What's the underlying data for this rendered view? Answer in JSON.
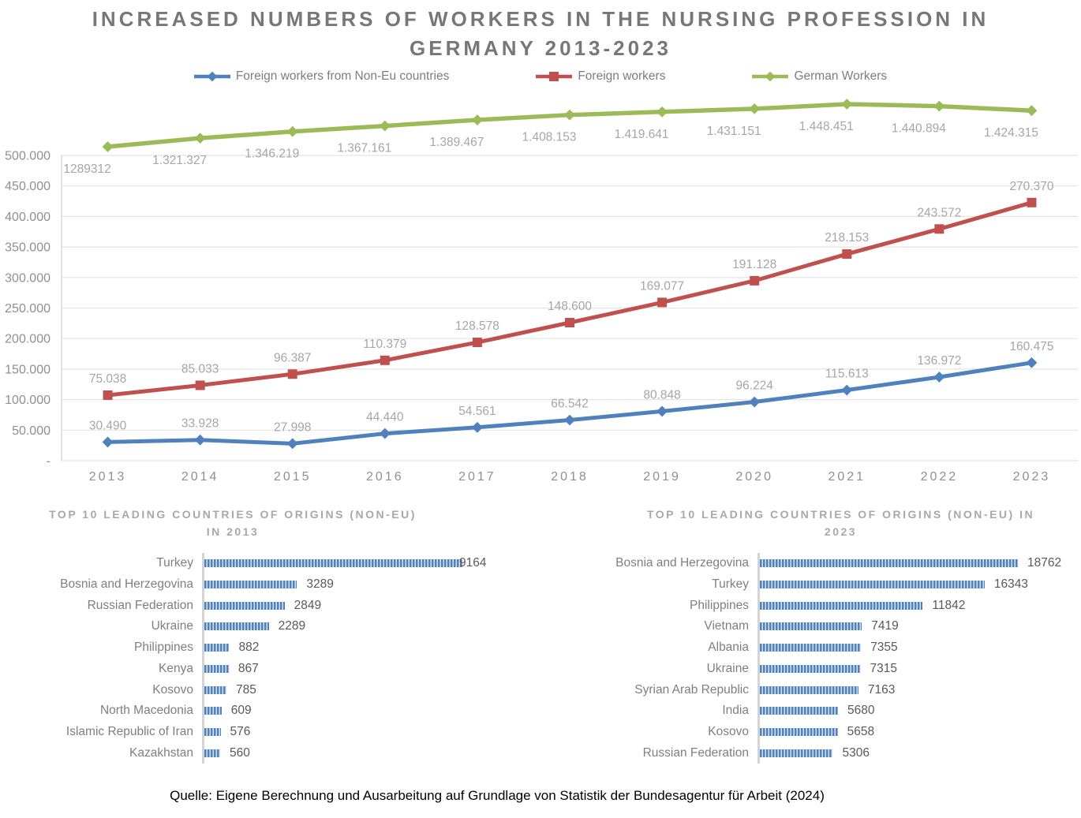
{
  "source_note": "Quelle: Eigene Berechnung und Ausarbeitung auf Grundlage von Statistik der Bundesagentur für Arbeit (2024)",
  "colors": {
    "blue": "#4F81BD",
    "red": "#C0504D",
    "green": "#9BBB59",
    "grid": "#e4e4e4",
    "axis_line": "#d9d9d9",
    "axis_text": "#8f8f8f",
    "data_label": "#a6a6a6",
    "bar_axis": "#d4d4d4",
    "bar_value_text": "#595959",
    "bar_category_text": "#7f7f7f"
  },
  "chart_data": [
    {
      "type": "line",
      "title": "INCREASED NUMBERS OF WORKERS IN THE NURSING PROFESSION IN GERMANY 2013-2023",
      "title_line1": "INCREASED NUMBERS OF WORKERS IN THE NURSING PROFESSION IN",
      "title_line2": "GERMANY 2013-2023",
      "legend_position": "top",
      "grid": true,
      "categories": [
        "2013",
        "2014",
        "2015",
        "2016",
        "2017",
        "2018",
        "2019",
        "2020",
        "2021",
        "2022",
        "2023"
      ],
      "y_axis": {
        "tick_labels": [
          "500.000",
          "450.000",
          "400.000",
          "350.000",
          "300.000",
          "250.000",
          "200.000",
          "150.000",
          "100.000",
          "50.000",
          "-"
        ],
        "min": 0,
        "max": 500000
      },
      "series": [
        {
          "name": "Foreign workers from Non-Eu countries",
          "marker": "diamond",
          "color": "#4F81BD",
          "values": [
            30490,
            33928,
            27998,
            44440,
            54561,
            66542,
            80848,
            96224,
            115613,
            136972,
            160475
          ],
          "labels": [
            "30.490",
            "33.928",
            "27.998",
            "44.440",
            "54.561",
            "66.542",
            "80.848",
            "96.224",
            "115.613",
            "136.972",
            "160.475"
          ]
        },
        {
          "name": "Foreign workers",
          "marker": "square",
          "color": "#C0504D",
          "values": [
            75038,
            85033,
            96387,
            110379,
            128578,
            148600,
            169077,
            191128,
            218153,
            243572,
            270370
          ],
          "labels": [
            "75.038",
            "85.033",
            "96.387",
            "110.379",
            "128.578",
            "148.600",
            "169.077",
            "191.128",
            "218.153",
            "243.572",
            "270.370"
          ]
        },
        {
          "name": "German Workers",
          "marker": "diamond",
          "color": "#9BBB59",
          "values": [
            1289312,
            1321327,
            1346219,
            1367161,
            1389467,
            1408153,
            1419641,
            1431151,
            1448451,
            1440894,
            1424315
          ],
          "labels": [
            "1289312",
            "1.321.327",
            "1.346.219",
            "1.367.161",
            "1.389.467",
            "1.408.153",
            "1.419.641",
            "1.431.151",
            "1.448.451",
            "1.440.894",
            "1.424.315"
          ]
        }
      ]
    },
    {
      "type": "bar",
      "title": "TOP 10 LEADING COUNTRIES OF ORIGINS (NON-EU) IN 2013",
      "title_line1": "TOP 10 LEADING COUNTRIES OF ORIGINS (NON-EU)",
      "title_line2": "IN 2013",
      "orientation": "horizontal",
      "categories": [
        "Turkey",
        "Bosnia and Herzegovina",
        "Russian Federation",
        "Ukraine",
        "Philippines",
        "Kenya",
        "Kosovo",
        "North Macedonia",
        "Islamic Republic of Iran",
        "Kazakhstan"
      ],
      "values": [
        9164,
        3289,
        2849,
        2289,
        882,
        867,
        785,
        609,
        576,
        560
      ]
    },
    {
      "type": "bar",
      "title": "TOP 10 LEADING COUNTRIES OF ORIGINS (NON-EU) IN 2023",
      "title_line1": "TOP 10 LEADING COUNTRIES OF ORIGINS (NON-EU) IN",
      "title_line2": "2023",
      "orientation": "horizontal",
      "categories": [
        "Bosnia and Herzegovina",
        "Turkey",
        "Philippines",
        "Vietnam",
        "Albania",
        "Ukraine",
        "Syrian Arab Republic",
        "India",
        "Kosovo",
        "Russian Federation"
      ],
      "values": [
        18762,
        16343,
        11842,
        7419,
        7355,
        7315,
        7163,
        5680,
        5658,
        5306
      ]
    }
  ]
}
